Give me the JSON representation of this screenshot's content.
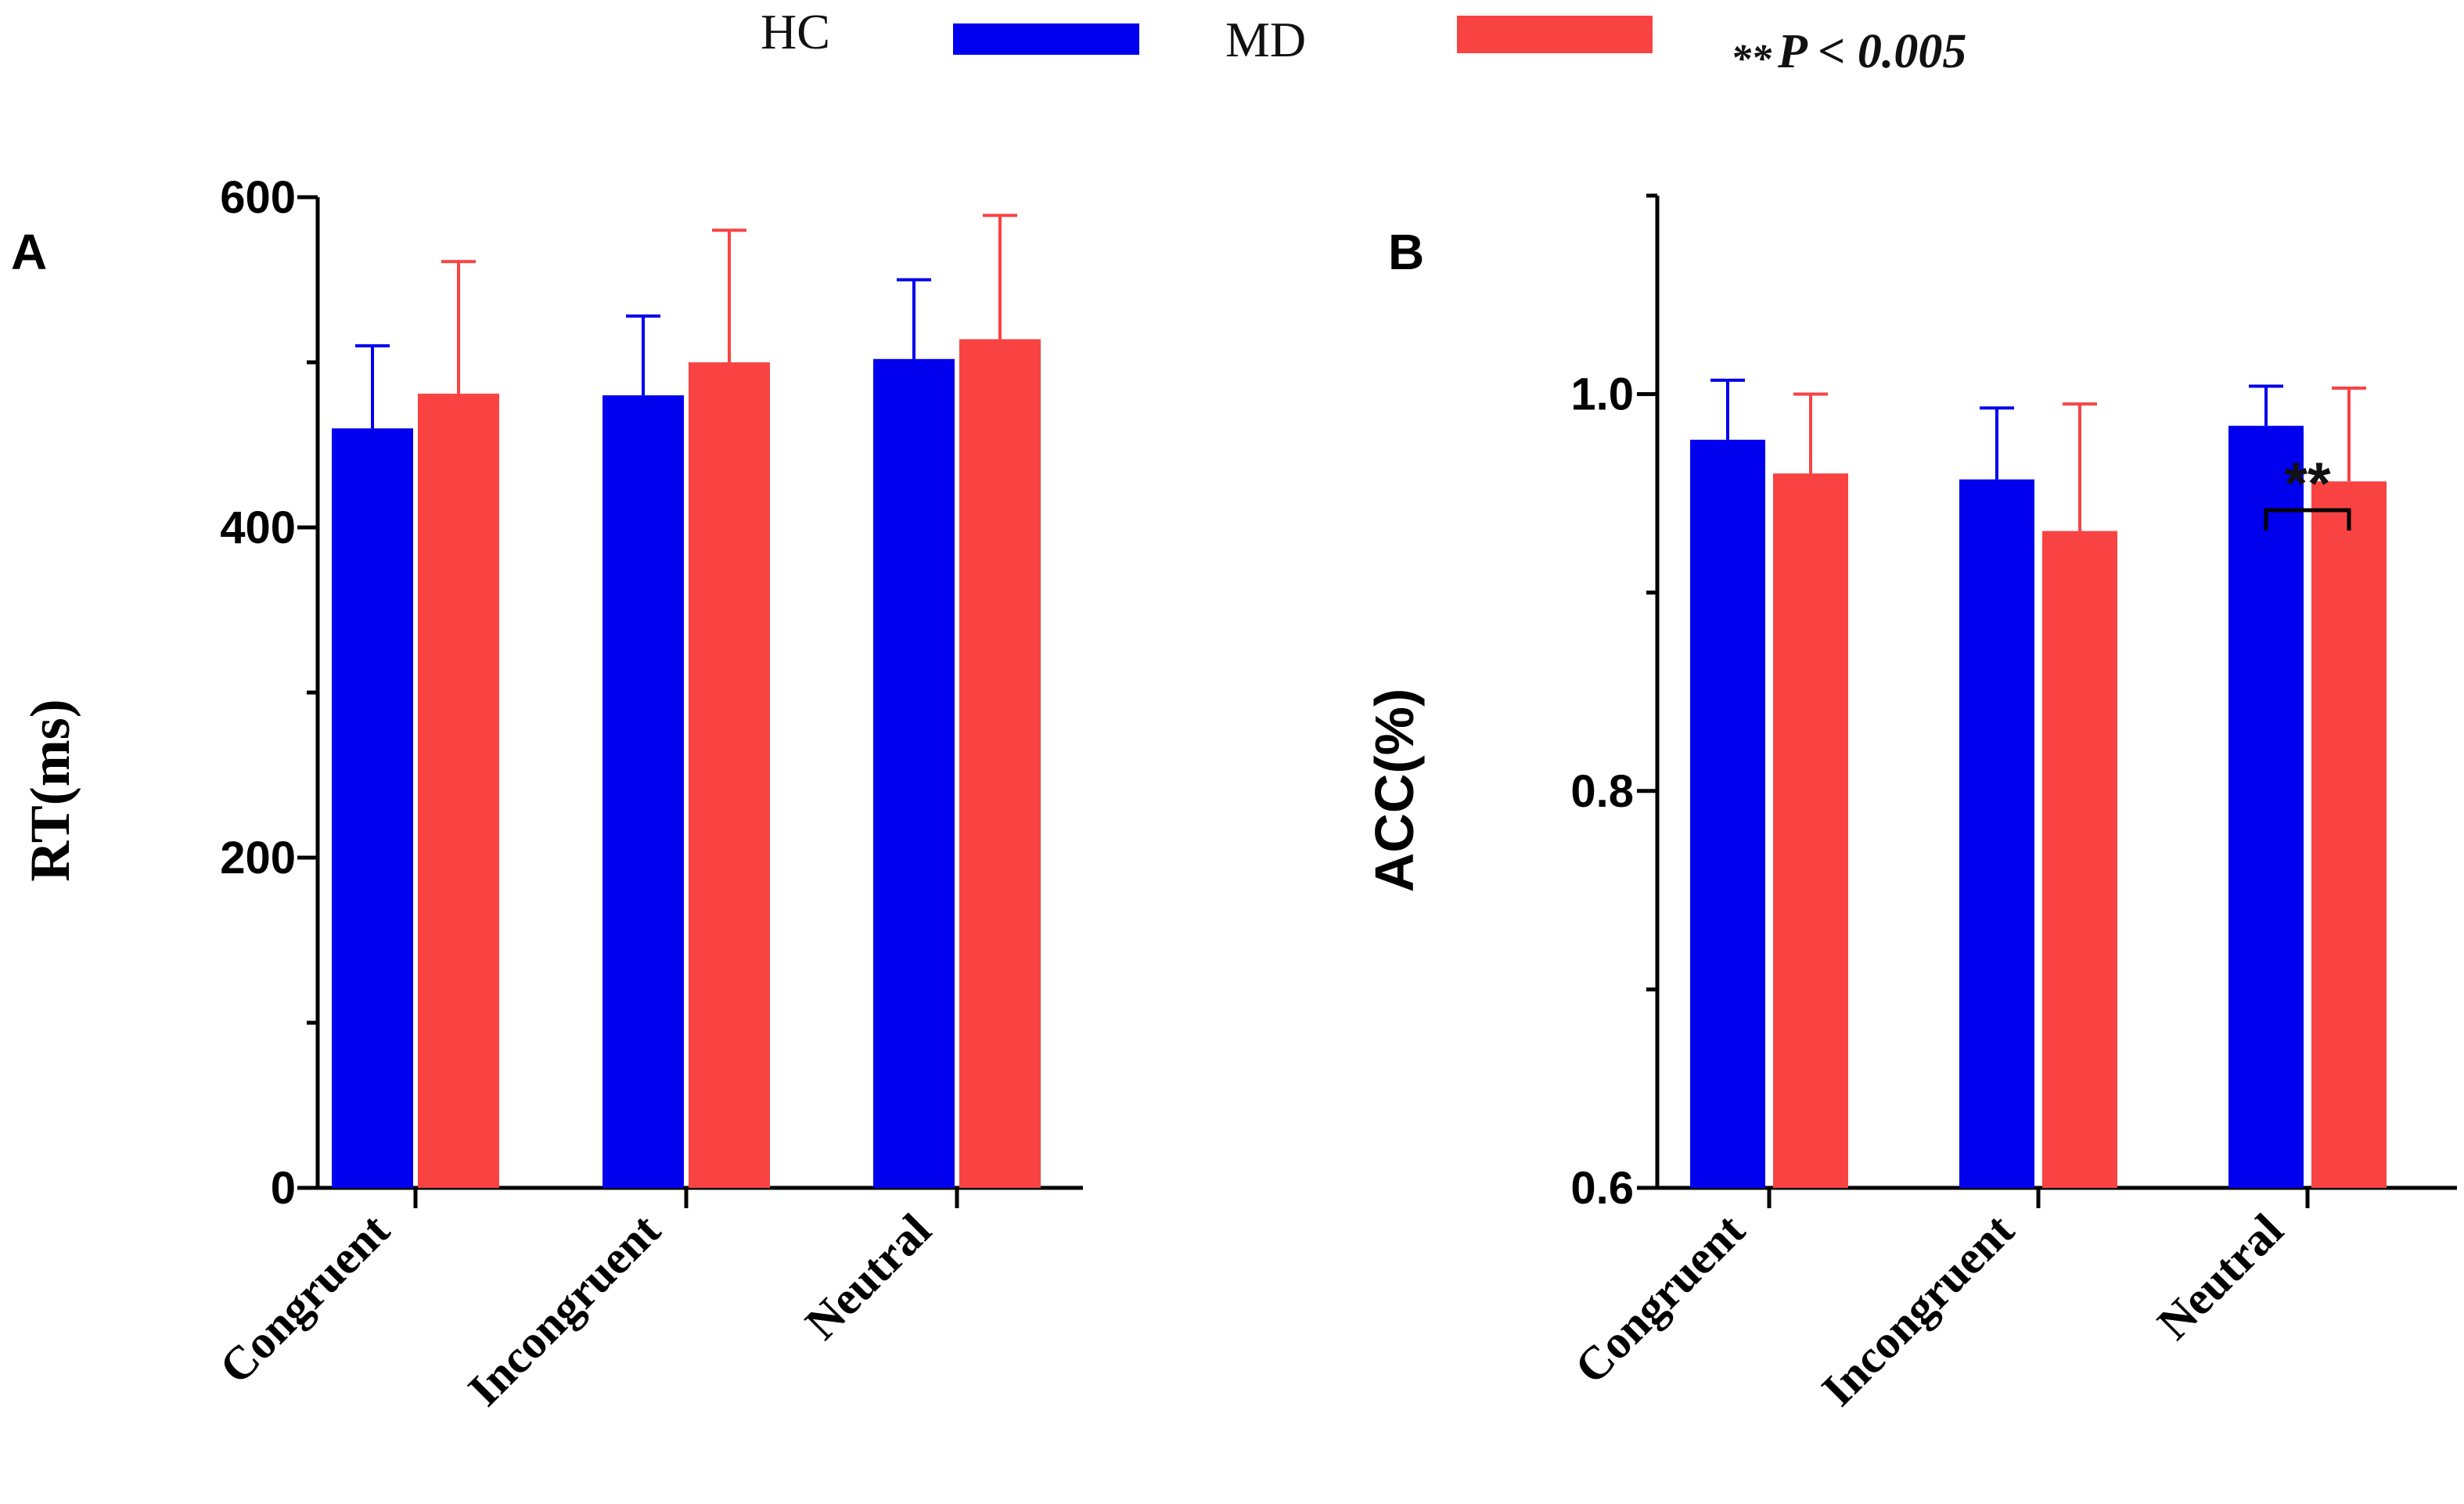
{
  "legend": {
    "items": [
      {
        "label": "HC",
        "color": "#0000ee"
      },
      {
        "label": "MD",
        "color": "#f94343"
      }
    ],
    "sig_prefix": "**",
    "sig_text": "P < 0.005"
  },
  "colors": {
    "hc": "#0000ee",
    "md": "#f94343",
    "axis": "#000000"
  },
  "chart_data": [
    {
      "type": "bar",
      "panel": "A",
      "title": "",
      "xlabel": "",
      "ylabel": "RT(ms)",
      "ylim": [
        0,
        600
      ],
      "yticks": [
        0,
        200,
        400,
        600
      ],
      "ytick_labels": [
        "0",
        "200",
        "400",
        "600"
      ],
      "categories": [
        "Congruent",
        "Incongruent",
        "Neutral"
      ],
      "series": [
        {
          "name": "HC",
          "values": [
            460,
            480,
            502
          ],
          "errors": [
            50,
            48,
            48
          ]
        },
        {
          "name": "MD",
          "values": [
            481,
            500,
            514
          ],
          "errors": [
            80,
            80,
            75
          ]
        }
      ],
      "significance": []
    },
    {
      "type": "bar",
      "panel": "B",
      "title": "",
      "xlabel": "",
      "ylabel": "ACC(%)",
      "ylim": [
        0.6,
        1.1
      ],
      "yticks": [
        0.6,
        0.8,
        1.0
      ],
      "ytick_labels": [
        "0.6",
        "0.8",
        "1.0"
      ],
      "minor_yticks": [
        0.7,
        0.9,
        1.1
      ],
      "categories": [
        "Congruent",
        "Incongruent",
        "Neutral"
      ],
      "series": [
        {
          "name": "HC",
          "values": [
            0.977,
            0.957,
            0.984
          ],
          "errors": [
            0.03,
            0.036,
            0.02
          ]
        },
        {
          "name": "MD",
          "values": [
            0.96,
            0.931,
            0.956
          ],
          "errors": [
            0.04,
            0.064,
            0.047
          ]
        }
      ],
      "significance": [
        {
          "category": "Neutral",
          "label": "**"
        }
      ]
    }
  ]
}
